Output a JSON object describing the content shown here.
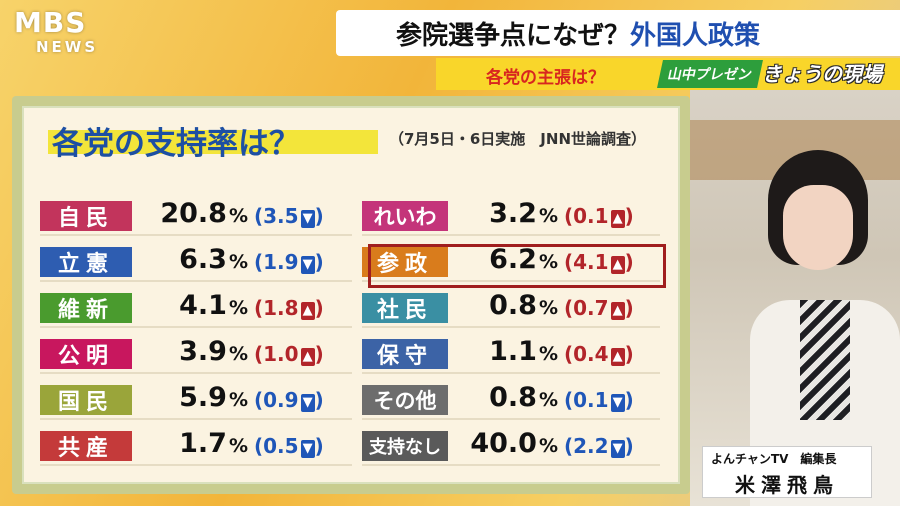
{
  "logo": {
    "line1": "MBS",
    "line2": "NEWS"
  },
  "headline": {
    "part1": "参院選争点になぜ？",
    "part2": "外国人政策"
  },
  "subheadline": "各党の主張は？",
  "program": {
    "part1": "山中プレゼン",
    "part2": "きょうの現場"
  },
  "board": {
    "title": "各党の支持率は？",
    "subtitle": "（7月5日・6日実施　JNN世論調査）"
  },
  "colors": {
    "up": "#b2252a",
    "down": "#1f56b8"
  },
  "left_parties": [
    {
      "name": "自民",
      "color": "#c2345c",
      "pct": "20.8",
      "change": "3.5",
      "dir": "down"
    },
    {
      "name": "立憲",
      "color": "#2e5db1",
      "pct": "6.3",
      "change": "1.9",
      "dir": "down"
    },
    {
      "name": "維新",
      "color": "#4a9b2e",
      "pct": "4.1",
      "change": "1.8",
      "dir": "up"
    },
    {
      "name": "公明",
      "color": "#c8175e",
      "pct": "3.9",
      "change": "1.0",
      "dir": "up"
    },
    {
      "name": "国民",
      "color": "#9aa53a",
      "pct": "5.9",
      "change": "0.9",
      "dir": "down"
    },
    {
      "name": "共産",
      "color": "#c43a3a",
      "pct": "1.7",
      "change": "0.5",
      "dir": "down"
    }
  ],
  "right_parties": [
    {
      "name": "れいわ",
      "color": "#c4347a",
      "pct": "3.2",
      "change": "0.1",
      "dir": "up"
    },
    {
      "name": "参政",
      "color": "#d97c1c",
      "pct": "6.2",
      "change": "4.1",
      "dir": "up"
    },
    {
      "name": "社民",
      "color": "#3a8fa3",
      "pct": "0.8",
      "change": "0.7",
      "dir": "up"
    },
    {
      "name": "保守",
      "color": "#3c63a6",
      "pct": "1.1",
      "change": "0.4",
      "dir": "up"
    },
    {
      "name": "その他",
      "color": "#6d6d6d",
      "pct": "0.8",
      "change": "0.1",
      "dir": "down"
    },
    {
      "name": "支持なし",
      "color": "#5a5a5a",
      "pct": "40.0",
      "change": "2.2",
      "dir": "down"
    }
  ],
  "percent_sign": "%",
  "caption": {
    "org": "よんチャンTV　編集長",
    "name": "米澤飛鳥"
  }
}
